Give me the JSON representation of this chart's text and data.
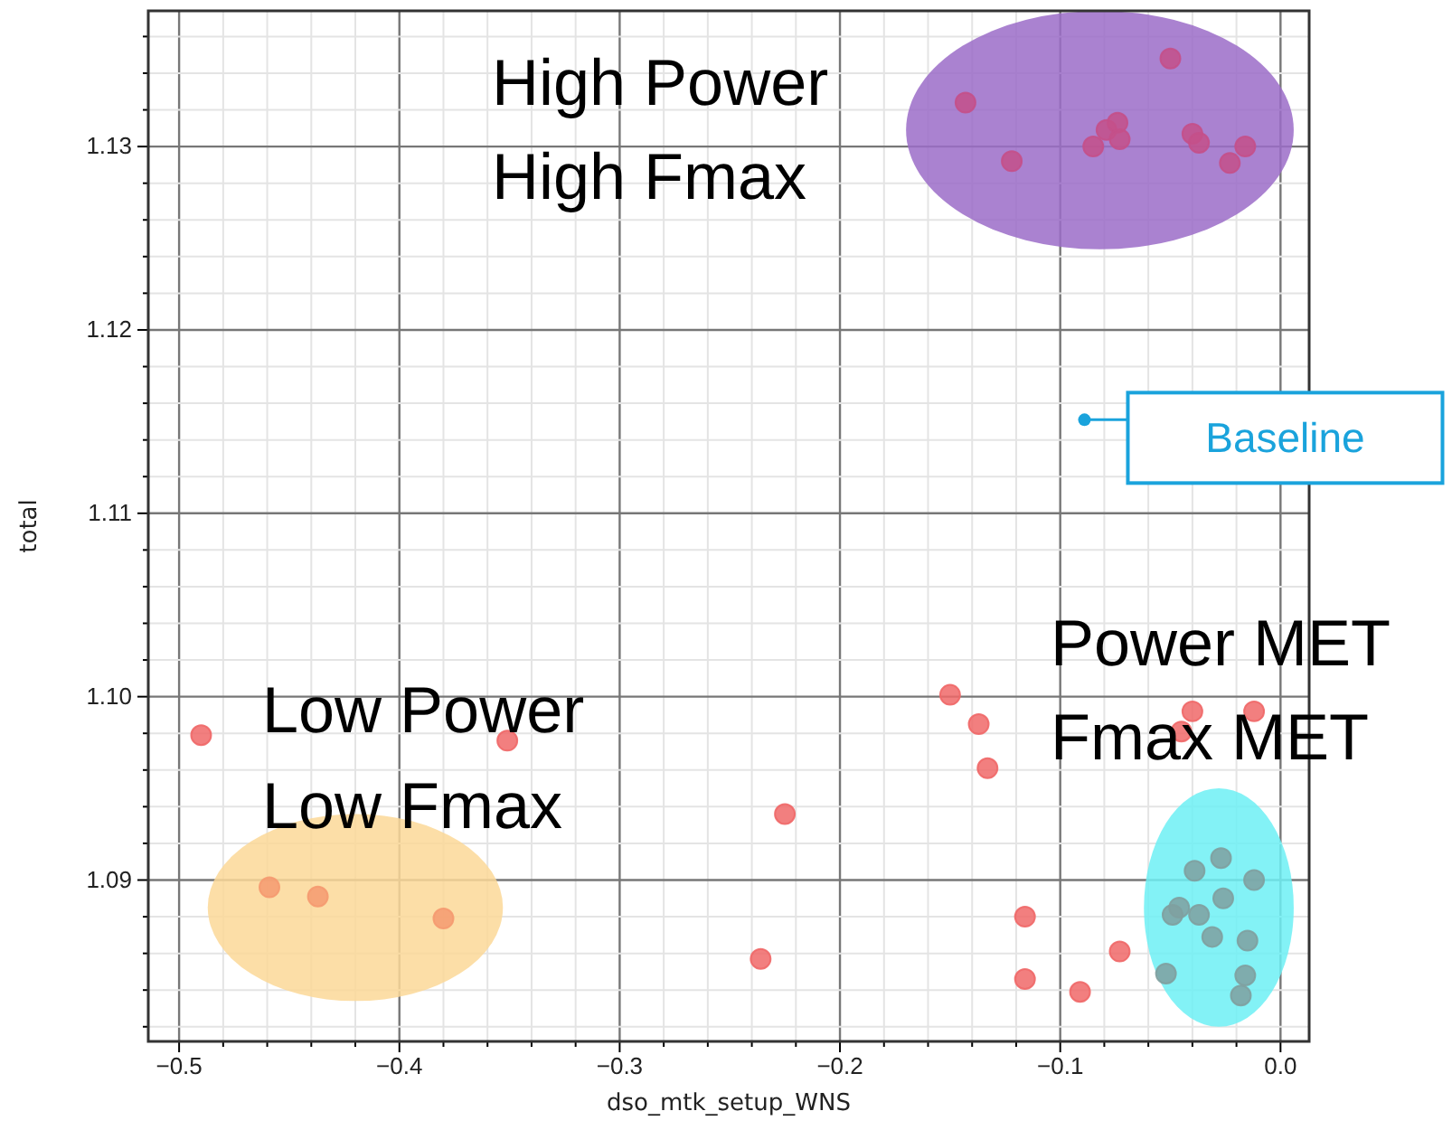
{
  "chart_data": {
    "type": "scatter",
    "xlabel": "dso_mtk_setup_WNS",
    "ylabel": "total",
    "xlim": [
      -0.514,
      0.013
    ],
    "ylim": [
      1.0812,
      1.1374
    ],
    "xticks": [
      {
        "value": -0.5,
        "label": "−0.5"
      },
      {
        "value": -0.48,
        "label": null
      },
      {
        "value": -0.46,
        "label": null
      },
      {
        "value": -0.44,
        "label": null
      },
      {
        "value": -0.42,
        "label": null
      },
      {
        "value": -0.4,
        "label": "−0.4"
      },
      {
        "value": -0.38,
        "label": null
      },
      {
        "value": -0.36,
        "label": null
      },
      {
        "value": -0.34,
        "label": null
      },
      {
        "value": -0.32,
        "label": null
      },
      {
        "value": -0.3,
        "label": "−0.3"
      },
      {
        "value": -0.28,
        "label": null
      },
      {
        "value": -0.26,
        "label": null
      },
      {
        "value": -0.24,
        "label": null
      },
      {
        "value": -0.22,
        "label": null
      },
      {
        "value": -0.2,
        "label": "−0.2"
      },
      {
        "value": -0.18,
        "label": null
      },
      {
        "value": -0.16,
        "label": null
      },
      {
        "value": -0.14,
        "label": null
      },
      {
        "value": -0.12,
        "label": null
      },
      {
        "value": -0.1,
        "label": "−0.1"
      },
      {
        "value": -0.08,
        "label": null
      },
      {
        "value": -0.06,
        "label": null
      },
      {
        "value": -0.04,
        "label": null
      },
      {
        "value": -0.02,
        "label": null
      },
      {
        "value": 0,
        "label": "0.0"
      }
    ],
    "yticks": [
      {
        "value": 1.082,
        "label": null
      },
      {
        "value": 1.084,
        "label": null
      },
      {
        "value": 1.086,
        "label": null
      },
      {
        "value": 1.088,
        "label": null
      },
      1.09,
      {
        "value": 1.092,
        "label": null
      },
      {
        "value": 1.094,
        "label": null
      },
      {
        "value": 1.096,
        "label": null
      },
      {
        "value": 1.098,
        "label": null
      },
      {
        "value": 1.1,
        "label": "1.10"
      },
      {
        "value": 1.102,
        "label": null
      },
      {
        "value": 1.104,
        "label": null
      },
      {
        "value": 1.106,
        "label": null
      },
      {
        "value": 1.108,
        "label": null
      },
      1.11,
      {
        "value": 1.112,
        "label": null
      },
      {
        "value": 1.114,
        "label": null
      },
      {
        "value": 1.116,
        "label": null
      },
      {
        "value": 1.118,
        "label": null
      },
      1.12,
      {
        "value": 1.122,
        "label": null
      },
      {
        "value": 1.124,
        "label": null
      },
      {
        "value": 1.126,
        "label": null
      },
      {
        "value": 1.128,
        "label": null
      },
      1.13,
      {
        "value": 1.132,
        "label": null
      },
      {
        "value": 1.134,
        "label": null
      },
      {
        "value": 1.136,
        "label": null
      }
    ],
    "grid": true,
    "marker": "circle",
    "series": [
      {
        "color": "#f06868",
        "x": [
          -0.49,
          -0.351,
          -0.225,
          -0.236,
          -0.15,
          -0.137,
          -0.133,
          -0.116,
          -0.116,
          -0.091,
          -0.073,
          -0.04,
          -0.012,
          -0.045
        ],
        "values": [
          1.0979,
          1.0976,
          1.0936,
          1.0857,
          1.1001,
          1.0985,
          1.0961,
          1.088,
          1.0846,
          1.0839,
          1.0861,
          1.0992,
          1.0992,
          1.0981
        ]
      },
      {
        "color": "#c4508a",
        "x": [
          -0.143,
          -0.122,
          -0.085,
          -0.079,
          -0.074,
          -0.073,
          -0.05,
          -0.04,
          -0.037,
          -0.023,
          -0.016
        ],
        "values": [
          1.1324,
          1.1292,
          1.13,
          1.1309,
          1.1313,
          1.1304,
          1.1348,
          1.1307,
          1.1302,
          1.1291,
          1.13
        ]
      },
      {
        "color": "#f59a70",
        "x": [
          -0.459,
          -0.437,
          -0.38
        ],
        "values": [
          1.0896,
          1.0891,
          1.0879
        ]
      },
      {
        "color": "#7fa0a0",
        "x": [
          -0.039,
          -0.027,
          -0.012,
          -0.026,
          -0.046,
          -0.049,
          -0.037,
          -0.031,
          -0.015,
          -0.052,
          -0.016,
          -0.018
        ],
        "values": [
          1.0905,
          1.0912,
          1.09,
          1.089,
          1.0885,
          1.0881,
          1.0881,
          1.0869,
          1.0867,
          1.0849,
          1.0848,
          1.0837
        ]
      }
    ],
    "annotations": [
      "High Power\nHigh Fmax",
      "Low Power\nLow Fmax",
      "Power MET\nFmax MET",
      {
        "text": "Baseline",
        "x": -0.089,
        "y": 1.1151
      }
    ]
  }
}
